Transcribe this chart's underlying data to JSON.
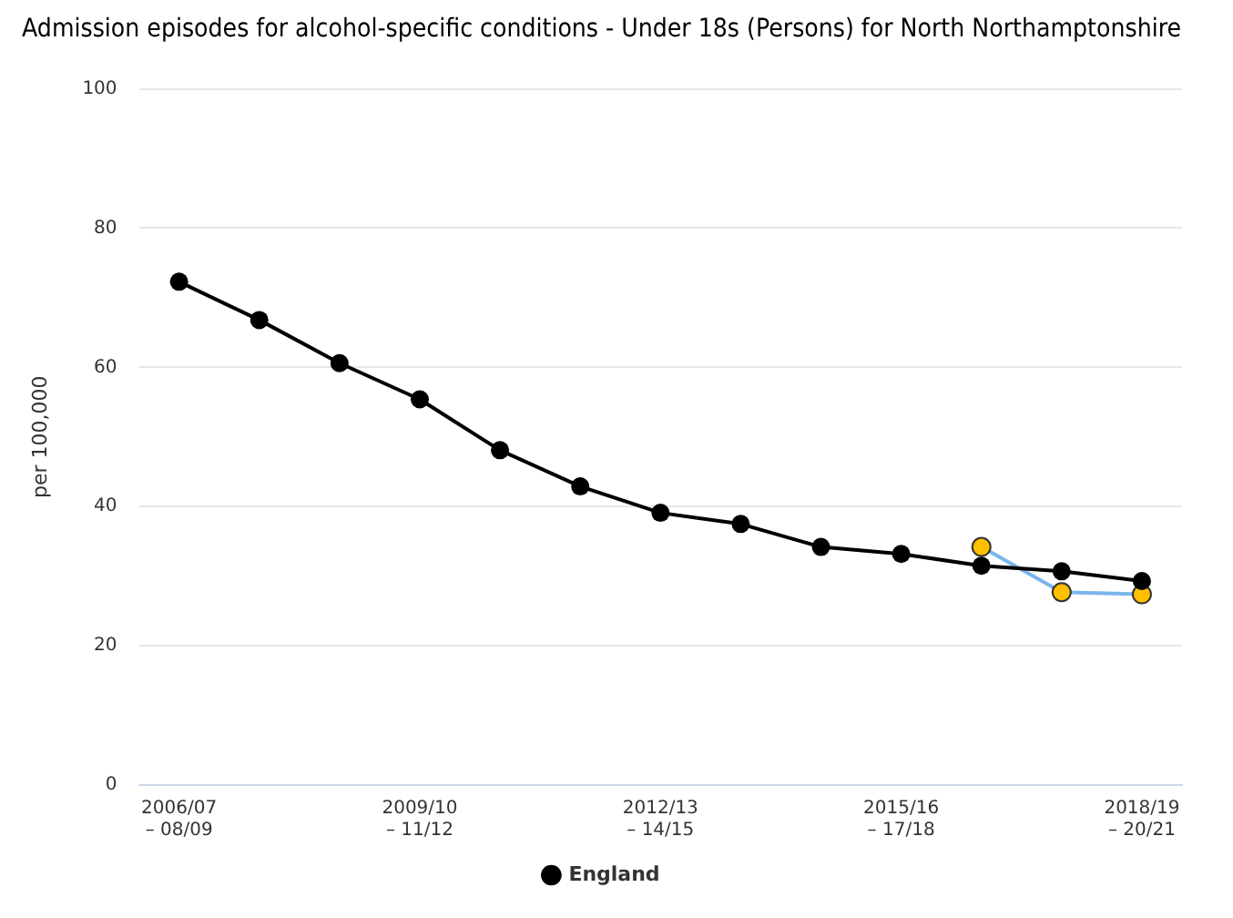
{
  "chart_data": {
    "type": "line",
    "title": "Admission episodes for alcohol-specific conditions - Under 18s (Persons) for North Northamptonshire",
    "ylabel": "per 100,000",
    "categories": [
      "2006/07\n– 08/09",
      null,
      null,
      "2009/10\n– 11/12",
      null,
      null,
      "2012/13\n– 14/15",
      null,
      null,
      "2015/16\n– 17/18",
      null,
      null,
      "2018/19\n– 20/21"
    ],
    "series": [
      {
        "name": "England",
        "color": "#000000",
        "values": [
          72.3,
          66.8,
          60.6,
          55.4,
          48.1,
          42.9,
          39.1,
          37.5,
          34.2,
          33.2,
          31.5,
          30.7,
          29.3
        ]
      },
      {
        "color": "#7cb5ec",
        "colors": [
          null,
          null,
          null,
          null,
          null,
          null,
          null,
          null,
          null,
          null,
          "#ffc000",
          "#ffc000",
          "#ffc000"
        ],
        "values": [
          null,
          null,
          null,
          null,
          null,
          null,
          null,
          null,
          null,
          null,
          34.2,
          27.7,
          27.4
        ]
      }
    ],
    "ylim": [
      0,
      100
    ],
    "yticks": [
      0,
      20,
      40,
      60,
      80,
      100
    ],
    "grid": "y",
    "legend": "bottom",
    "marker": "circle"
  }
}
